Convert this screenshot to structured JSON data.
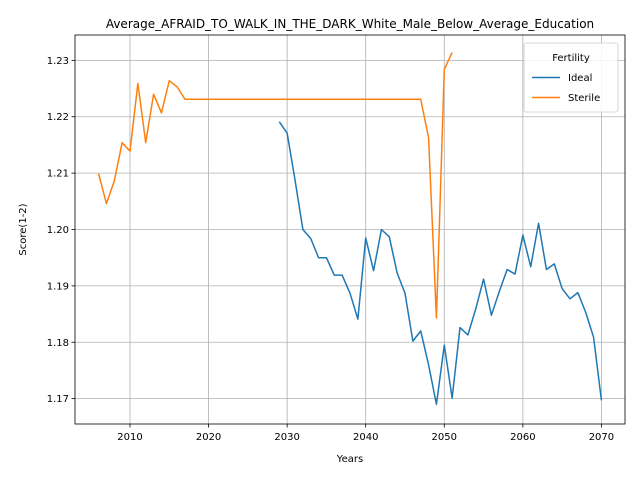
{
  "chart_data": {
    "type": "line",
    "title": "Average_AFRAID_TO_WALK_IN_THE_DARK_White_Male_Below_Average_Education",
    "xlabel": "Years",
    "ylabel": "Score(1-2)",
    "xlim": [
      2003,
      2073
    ],
    "ylim": [
      1.1655,
      1.2345
    ],
    "xticks": [
      2010,
      2020,
      2030,
      2040,
      2050,
      2060,
      2070
    ],
    "yticks": [
      1.17,
      1.18,
      1.19,
      1.2,
      1.21,
      1.22,
      1.23
    ],
    "ytick_labels": [
      "1.17",
      "1.18",
      "1.19",
      "1.20",
      "1.21",
      "1.22",
      "1.23"
    ],
    "grid": true,
    "legend": {
      "title": "Fertility",
      "placement": "top-right"
    },
    "series": [
      {
        "name": "Ideal",
        "color": "#1f77b4",
        "x": [
          2029,
          2030,
          2031,
          2032,
          2033,
          2034,
          2035,
          2036,
          2037,
          2038,
          2039,
          2040,
          2041,
          2042,
          2043,
          2044,
          2045,
          2046,
          2047,
          2048,
          2049,
          2050,
          2051,
          2052,
          2053,
          2054,
          2055,
          2056,
          2057,
          2058,
          2059,
          2060,
          2061,
          2062,
          2063,
          2064,
          2065,
          2066,
          2067,
          2068,
          2069,
          2070
        ],
        "y": [
          1.2191,
          1.2171,
          1.2088,
          1.2,
          1.1984,
          1.195,
          1.195,
          1.1919,
          1.1919,
          1.1887,
          1.1841,
          1.1985,
          1.1927,
          1.2,
          1.1987,
          1.1923,
          1.1887,
          1.1802,
          1.182,
          1.176,
          1.169,
          1.1795,
          1.1701,
          1.1826,
          1.1813,
          1.1859,
          1.1912,
          1.1848,
          1.189,
          1.1929,
          1.1921,
          1.199,
          1.1934,
          1.2011,
          1.1929,
          1.1939,
          1.1895,
          1.1877,
          1.1888,
          1.1853,
          1.1809,
          1.1697
        ]
      },
      {
        "name": "Sterile",
        "color": "#ff7f0e",
        "x": [
          2006,
          2007,
          2008,
          2009,
          2010,
          2011,
          2012,
          2013,
          2014,
          2015,
          2016,
          2017,
          2018,
          2020,
          2025,
          2030,
          2035,
          2040,
          2045,
          2047,
          2048,
          2049,
          2050,
          2051
        ],
        "y": [
          1.2099,
          1.2046,
          1.2086,
          1.2154,
          1.2139,
          1.2259,
          1.2154,
          1.224,
          1.2207,
          1.2264,
          1.2253,
          1.2231,
          1.2231,
          1.2231,
          1.2231,
          1.2231,
          1.2231,
          1.2231,
          1.2231,
          1.2231,
          1.2163,
          1.1843,
          1.2284,
          1.2314
        ]
      }
    ]
  }
}
